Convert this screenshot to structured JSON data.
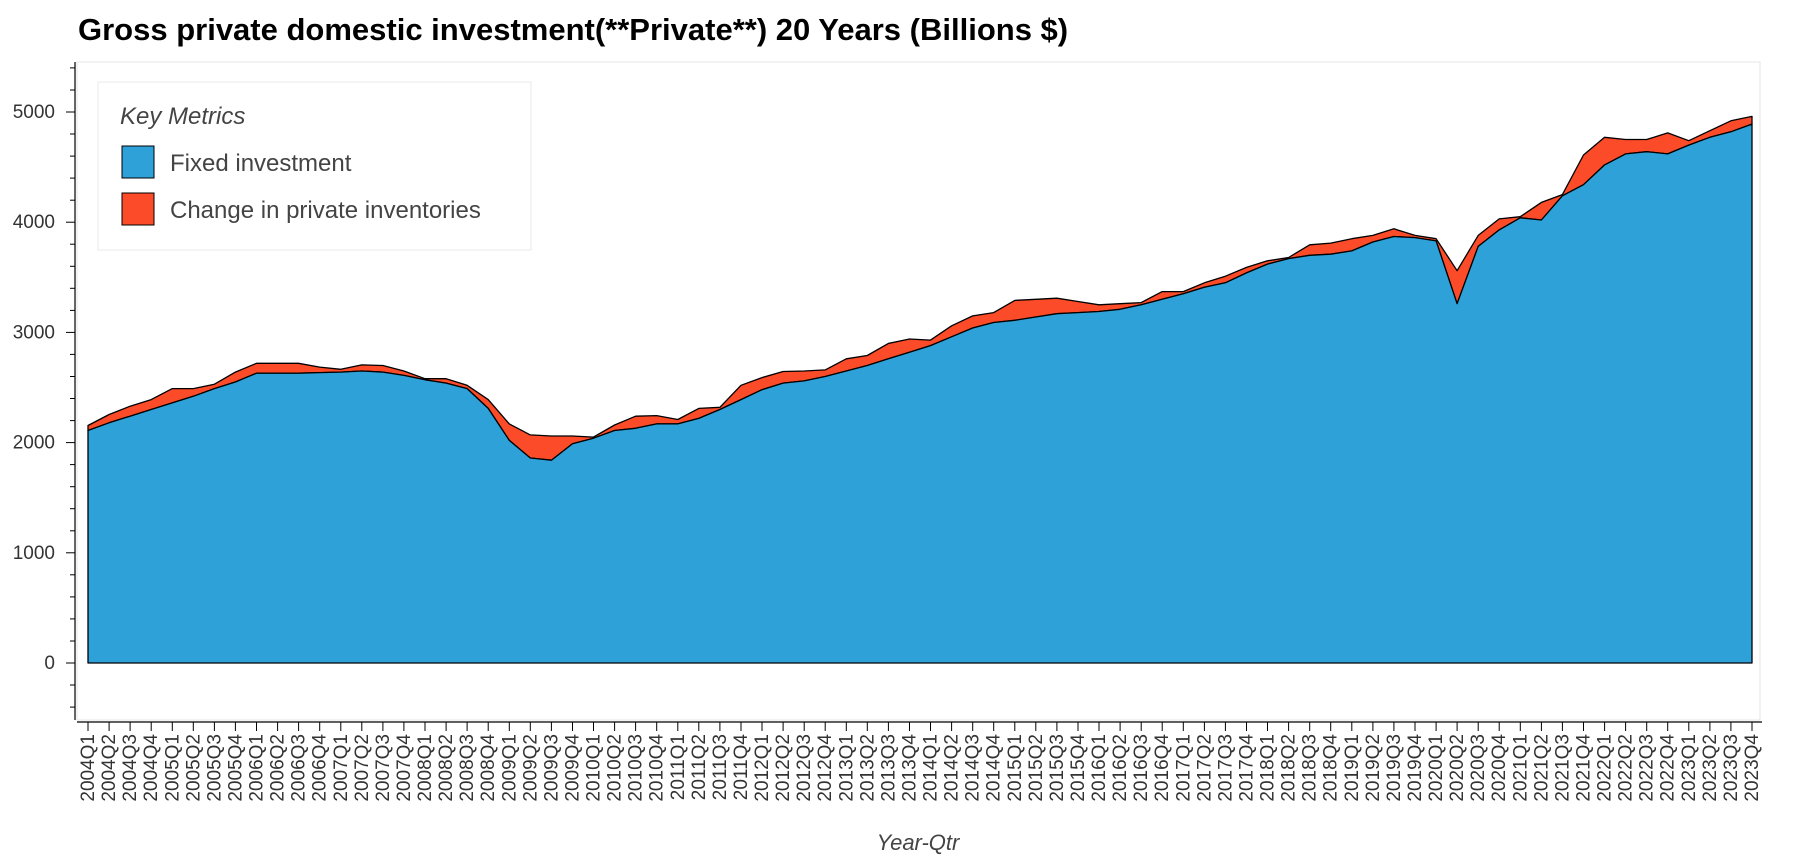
{
  "chart_data": {
    "type": "area",
    "stacked": true,
    "title": "Gross private domestic investment(**Private**) 20 Years (Billions $)",
    "xlabel": "Year-Qtr",
    "ylabel": "",
    "ylim": [
      -500,
      5450
    ],
    "yticks": [
      0,
      1000,
      2000,
      3000,
      4000,
      5000
    ],
    "grid": false,
    "legend": {
      "title": "Key Metrics",
      "position": "top-left"
    },
    "categories": [
      "2004Q1",
      "2004Q2",
      "2004Q3",
      "2004Q4",
      "2005Q1",
      "2005Q2",
      "2005Q3",
      "2005Q4",
      "2006Q1",
      "2006Q2",
      "2006Q3",
      "2006Q4",
      "2007Q1",
      "2007Q2",
      "2007Q3",
      "2007Q4",
      "2008Q1",
      "2008Q2",
      "2008Q3",
      "2008Q4",
      "2009Q1",
      "2009Q2",
      "2009Q3",
      "2009Q4",
      "2010Q1",
      "2010Q2",
      "2010Q3",
      "2010Q4",
      "2011Q1",
      "2011Q2",
      "2011Q3",
      "2011Q4",
      "2012Q1",
      "2012Q2",
      "2012Q3",
      "2012Q4",
      "2013Q1",
      "2013Q2",
      "2013Q3",
      "2013Q4",
      "2014Q1",
      "2014Q2",
      "2014Q3",
      "2014Q4",
      "2015Q1",
      "2015Q2",
      "2015Q3",
      "2015Q4",
      "2016Q1",
      "2016Q2",
      "2016Q3",
      "2016Q4",
      "2017Q1",
      "2017Q2",
      "2017Q3",
      "2017Q4",
      "2018Q1",
      "2018Q2",
      "2018Q3",
      "2018Q4",
      "2019Q1",
      "2019Q2",
      "2019Q3",
      "2019Q4",
      "2020Q1",
      "2020Q2",
      "2020Q3",
      "2020Q4",
      "2021Q1",
      "2021Q2",
      "2021Q3",
      "2021Q4",
      "2022Q1",
      "2022Q2",
      "2022Q3",
      "2022Q4",
      "2023Q1",
      "2023Q2",
      "2023Q3",
      "2023Q4"
    ],
    "series": [
      {
        "name": "Fixed investment",
        "color": "#2ea1d8",
        "values": [
          2110,
          2180,
          2240,
          2300,
          2360,
          2420,
          2490,
          2550,
          2630,
          2630,
          2630,
          2635,
          2640,
          2650,
          2640,
          2610,
          2570,
          2540,
          2490,
          2310,
          2020,
          1860,
          1840,
          1990,
          2040,
          2110,
          2130,
          2170,
          2170,
          2220,
          2300,
          2390,
          2480,
          2540,
          2560,
          2600,
          2650,
          2700,
          2760,
          2820,
          2880,
          2960,
          3040,
          3090,
          3110,
          3140,
          3170,
          3180,
          3190,
          3210,
          3250,
          3300,
          3350,
          3410,
          3450,
          3540,
          3620,
          3670,
          3700,
          3710,
          3740,
          3820,
          3870,
          3860,
          3830,
          3260,
          3780,
          3930,
          4040,
          4020,
          4240,
          4340,
          4520,
          4620,
          4640,
          4620,
          4700,
          4770,
          4820,
          4890
        ]
      },
      {
        "name": "Change in private inventories",
        "color": "#fb4b28",
        "values": [
          45,
          75,
          90,
          90,
          130,
          70,
          40,
          90,
          90,
          90,
          90,
          50,
          25,
          55,
          60,
          40,
          10,
          40,
          30,
          80,
          150,
          210,
          220,
          70,
          10,
          50,
          110,
          75,
          40,
          90,
          20,
          130,
          110,
          105,
          90,
          60,
          110,
          90,
          140,
          120,
          50,
          100,
          110,
          90,
          180,
          160,
          140,
          100,
          60,
          50,
          20,
          70,
          20,
          40,
          60,
          50,
          30,
          10,
          95,
          100,
          110,
          60,
          70,
          20,
          20,
          300,
          100,
          100,
          10,
          160,
          10,
          270,
          250,
          130,
          110,
          190,
          40,
          60,
          100,
          70
        ]
      }
    ]
  }
}
